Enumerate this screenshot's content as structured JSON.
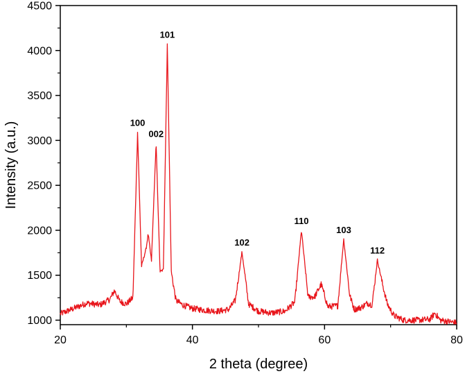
{
  "chart_data": {
    "type": "line",
    "title": "",
    "xlabel": "2 theta (degree)",
    "ylabel": "Intensity (a.u.)",
    "xlim": [
      20,
      80
    ],
    "ylim": [
      950,
      4500
    ],
    "xticks": [
      20,
      40,
      60,
      80
    ],
    "yticks": [
      1000,
      1500,
      2000,
      2500,
      3000,
      3500,
      4000,
      4500
    ],
    "grid": false,
    "line_color": "#e8141a",
    "series": [
      {
        "x": [
          20,
          22,
          24,
          26,
          27.5,
          28.2,
          29,
          30,
          31,
          31.7,
          32.3,
          33,
          33.3,
          33.8,
          34.5,
          35.1,
          35.6,
          36.2,
          36.8,
          37.5,
          38.5,
          40,
          42,
          44,
          45.5,
          46.5,
          47.5,
          48.5,
          50,
          52,
          54,
          55.5,
          56.5,
          57.5,
          58.5,
          59.5,
          60.5,
          62,
          62.9,
          63.8,
          64.5,
          65.5,
          66.5,
          67.2,
          68,
          68.8,
          69.5,
          70.5,
          72,
          74,
          76,
          76.7,
          77.5,
          80
        ],
        "y": [
          1070,
          1130,
          1190,
          1170,
          1230,
          1330,
          1210,
          1180,
          1250,
          3090,
          1600,
          1800,
          1960,
          1660,
          2970,
          1540,
          1560,
          4070,
          1540,
          1220,
          1170,
          1130,
          1110,
          1100,
          1120,
          1220,
          1760,
          1180,
          1100,
          1080,
          1100,
          1200,
          2000,
          1260,
          1260,
          1400,
          1150,
          1160,
          1900,
          1280,
          1120,
          1140,
          1190,
          1170,
          1670,
          1390,
          1180,
          1050,
          1000,
          1000,
          1010,
          1080,
          1000,
          970
        ]
      }
    ],
    "annotations": [
      {
        "text": "100",
        "x": 31.7,
        "y": 3090
      },
      {
        "text": "002",
        "x": 34.5,
        "y": 2970
      },
      {
        "text": "101",
        "x": 36.2,
        "y": 4070
      },
      {
        "text": "102",
        "x": 47.5,
        "y": 1760
      },
      {
        "text": "110",
        "x": 56.5,
        "y": 2000
      },
      {
        "text": "103",
        "x": 62.9,
        "y": 1900
      },
      {
        "text": "112",
        "x": 68.0,
        "y": 1670
      }
    ]
  }
}
